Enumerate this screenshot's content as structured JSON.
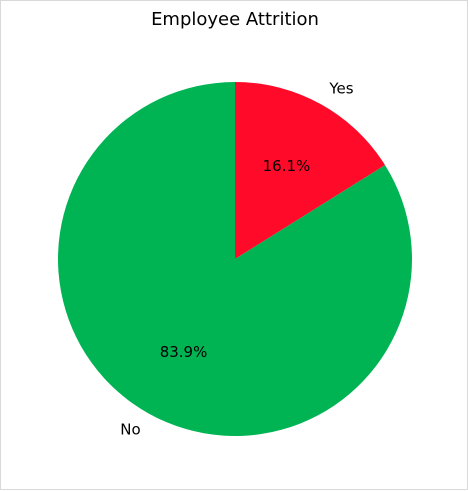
{
  "chart_data": {
    "type": "pie",
    "title": "Employee Attrition",
    "slices": [
      {
        "label": "Yes",
        "value": 16.1,
        "pct_label": "16.1%",
        "color": "#ff0a28"
      },
      {
        "label": "No",
        "value": 83.9,
        "pct_label": "83.9%",
        "color": "#00b454"
      }
    ],
    "start_angle_deg": 90,
    "direction": "clockwise",
    "legend": "none"
  }
}
